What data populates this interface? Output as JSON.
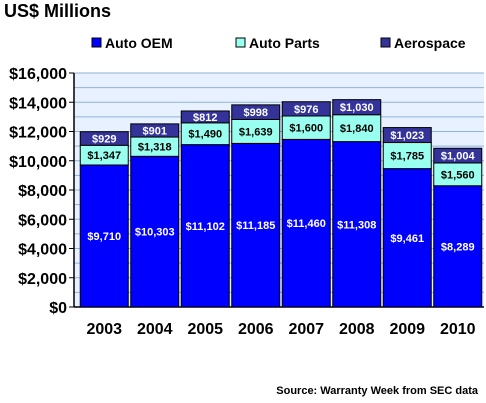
{
  "title": "US$ Millions",
  "source": "Source: Warranty Week from SEC data",
  "colors": {
    "auto_oem": "#0000ff",
    "auto_parts": "#99ffee",
    "aerospace": "#333399",
    "plot_bg": "#e8f1ff",
    "grid": "#8fb3da"
  },
  "chart_data": {
    "type": "bar",
    "stacked": true,
    "categories": [
      "2003",
      "2004",
      "2005",
      "2006",
      "2007",
      "2008",
      "2009",
      "2010"
    ],
    "series": [
      {
        "name": "Auto OEM",
        "color": "#0000ff",
        "values": [
          9710,
          10303,
          11102,
          11185,
          11460,
          11308,
          9461,
          8289
        ],
        "labels": [
          "$9,710",
          "$10,303",
          "$11,102",
          "$11,185",
          "$11,460",
          "$11,308",
          "$9,461",
          "$8,289"
        ]
      },
      {
        "name": "Auto Parts",
        "color": "#99ffee",
        "values": [
          1347,
          1318,
          1490,
          1639,
          1600,
          1840,
          1785,
          1560
        ],
        "labels": [
          "$1,347",
          "$1,318",
          "$1,490",
          "$1,639",
          "$1,600",
          "$1,840",
          "$1,785",
          "$1,560"
        ]
      },
      {
        "name": "Aerospace",
        "color": "#333399",
        "values": [
          929,
          901,
          812,
          998,
          976,
          1030,
          1023,
          1004
        ],
        "labels": [
          "$929",
          "$901",
          "$812",
          "$998",
          "$976",
          "$1,030",
          "$1,023",
          "$1,004"
        ]
      }
    ],
    "ylim": [
      0,
      16000
    ],
    "yticks": [
      0,
      2000,
      4000,
      6000,
      8000,
      10000,
      12000,
      14000,
      16000
    ],
    "ytick_labels": [
      "$0",
      "$2,000",
      "$4,000",
      "$6,000",
      "$8,000",
      "$10,000",
      "$12,000",
      "$14,000",
      "$16,000"
    ],
    "grid": true,
    "legend_position": "top"
  }
}
